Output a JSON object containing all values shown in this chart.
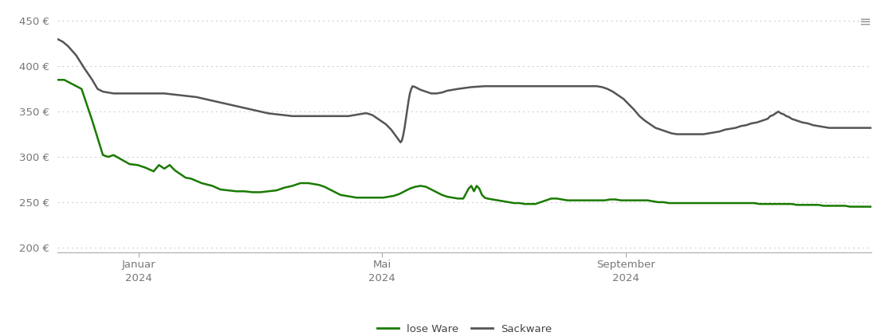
{
  "green_color": "#1a7a00",
  "gray_color": "#555555",
  "background_color": "#ffffff",
  "grid_color": "#c8c8c8",
  "ylim": [
    195,
    462
  ],
  "yticks": [
    200,
    250,
    300,
    350,
    400,
    450
  ],
  "ytick_labels": [
    "200 €",
    "250 €",
    "300 €",
    "350 €",
    "400 €",
    "450 €"
  ],
  "line_width": 1.8,
  "legend_green": "lose Ware",
  "legend_gray": "Sackware",
  "x_tick_positions": [
    61,
    243,
    426
  ],
  "x_tick_labels": [
    "Januar\n2024",
    "Mai\n2024",
    "September\n2024"
  ],
  "total_days": 610,
  "green_data": [
    [
      0,
      385
    ],
    [
      5,
      385
    ],
    [
      18,
      375
    ],
    [
      26,
      340
    ],
    [
      34,
      302
    ],
    [
      38,
      300
    ],
    [
      42,
      302
    ],
    [
      48,
      297
    ],
    [
      54,
      292
    ],
    [
      60,
      291
    ],
    [
      66,
      288
    ],
    [
      72,
      284
    ],
    [
      76,
      291
    ],
    [
      80,
      287
    ],
    [
      84,
      291
    ],
    [
      88,
      285
    ],
    [
      92,
      281
    ],
    [
      96,
      277
    ],
    [
      100,
      276
    ],
    [
      108,
      271
    ],
    [
      116,
      268
    ],
    [
      122,
      264
    ],
    [
      128,
      263
    ],
    [
      134,
      262
    ],
    [
      140,
      262
    ],
    [
      146,
      261
    ],
    [
      152,
      261
    ],
    [
      158,
      262
    ],
    [
      164,
      263
    ],
    [
      170,
      266
    ],
    [
      176,
      268
    ],
    [
      182,
      271
    ],
    [
      188,
      271
    ],
    [
      192,
      270
    ],
    [
      196,
      269
    ],
    [
      200,
      267
    ],
    [
      204,
      264
    ],
    [
      208,
      261
    ],
    [
      212,
      258
    ],
    [
      216,
      257
    ],
    [
      220,
      256
    ],
    [
      224,
      255
    ],
    [
      228,
      255
    ],
    [
      232,
      255
    ],
    [
      236,
      255
    ],
    [
      240,
      255
    ],
    [
      244,
      255
    ],
    [
      248,
      256
    ],
    [
      252,
      257
    ],
    [
      256,
      259
    ],
    [
      260,
      262
    ],
    [
      264,
      265
    ],
    [
      268,
      267
    ],
    [
      272,
      268
    ],
    [
      276,
      267
    ],
    [
      280,
      264
    ],
    [
      284,
      261
    ],
    [
      288,
      258
    ],
    [
      292,
      256
    ],
    [
      296,
      255
    ],
    [
      300,
      254
    ],
    [
      304,
      254
    ],
    [
      308,
      265
    ],
    [
      310,
      268
    ],
    [
      312,
      262
    ],
    [
      314,
      268
    ],
    [
      316,
      265
    ],
    [
      318,
      258
    ],
    [
      320,
      255
    ],
    [
      322,
      254
    ],
    [
      326,
      253
    ],
    [
      330,
      252
    ],
    [
      334,
      251
    ],
    [
      338,
      250
    ],
    [
      342,
      249
    ],
    [
      346,
      249
    ],
    [
      350,
      248
    ],
    [
      354,
      248
    ],
    [
      358,
      248
    ],
    [
      362,
      250
    ],
    [
      366,
      252
    ],
    [
      370,
      254
    ],
    [
      374,
      254
    ],
    [
      378,
      253
    ],
    [
      382,
      252
    ],
    [
      386,
      252
    ],
    [
      390,
      252
    ],
    [
      394,
      252
    ],
    [
      398,
      252
    ],
    [
      402,
      252
    ],
    [
      406,
      252
    ],
    [
      410,
      252
    ],
    [
      414,
      253
    ],
    [
      418,
      253
    ],
    [
      422,
      252
    ],
    [
      426,
      252
    ],
    [
      430,
      252
    ],
    [
      434,
      252
    ],
    [
      438,
      252
    ],
    [
      442,
      252
    ],
    [
      446,
      251
    ],
    [
      450,
      250
    ],
    [
      454,
      250
    ],
    [
      458,
      249
    ],
    [
      462,
      249
    ],
    [
      466,
      249
    ],
    [
      470,
      249
    ],
    [
      474,
      249
    ],
    [
      478,
      249
    ],
    [
      482,
      249
    ],
    [
      486,
      249
    ],
    [
      490,
      249
    ],
    [
      494,
      249
    ],
    [
      498,
      249
    ],
    [
      502,
      249
    ],
    [
      506,
      249
    ],
    [
      510,
      249
    ],
    [
      514,
      249
    ],
    [
      518,
      249
    ],
    [
      522,
      249
    ],
    [
      526,
      248
    ],
    [
      530,
      248
    ],
    [
      534,
      248
    ],
    [
      538,
      248
    ],
    [
      542,
      248
    ],
    [
      546,
      248
    ],
    [
      550,
      248
    ],
    [
      554,
      247
    ],
    [
      558,
      247
    ],
    [
      562,
      247
    ],
    [
      566,
      247
    ],
    [
      570,
      247
    ],
    [
      574,
      246
    ],
    [
      578,
      246
    ],
    [
      582,
      246
    ],
    [
      586,
      246
    ],
    [
      590,
      246
    ],
    [
      594,
      245
    ],
    [
      598,
      245
    ],
    [
      602,
      245
    ],
    [
      606,
      245
    ],
    [
      610,
      245
    ]
  ],
  "gray_data": [
    [
      0,
      430
    ],
    [
      4,
      427
    ],
    [
      8,
      422
    ],
    [
      14,
      412
    ],
    [
      20,
      398
    ],
    [
      26,
      385
    ],
    [
      30,
      375
    ],
    [
      34,
      372
    ],
    [
      38,
      371
    ],
    [
      42,
      370
    ],
    [
      46,
      370
    ],
    [
      50,
      370
    ],
    [
      56,
      370
    ],
    [
      62,
      370
    ],
    [
      68,
      370
    ],
    [
      74,
      370
    ],
    [
      80,
      370
    ],
    [
      86,
      369
    ],
    [
      92,
      368
    ],
    [
      98,
      367
    ],
    [
      104,
      366
    ],
    [
      110,
      364
    ],
    [
      116,
      362
    ],
    [
      122,
      360
    ],
    [
      128,
      358
    ],
    [
      134,
      356
    ],
    [
      140,
      354
    ],
    [
      146,
      352
    ],
    [
      152,
      350
    ],
    [
      158,
      348
    ],
    [
      164,
      347
    ],
    [
      170,
      346
    ],
    [
      176,
      345
    ],
    [
      182,
      345
    ],
    [
      188,
      345
    ],
    [
      192,
      345
    ],
    [
      196,
      345
    ],
    [
      200,
      345
    ],
    [
      204,
      345
    ],
    [
      208,
      345
    ],
    [
      212,
      345
    ],
    [
      216,
      345
    ],
    [
      218,
      345
    ],
    [
      222,
      346
    ],
    [
      226,
      347
    ],
    [
      230,
      348
    ],
    [
      232,
      348
    ],
    [
      234,
      347
    ],
    [
      236,
      346
    ],
    [
      238,
      344
    ],
    [
      240,
      342
    ],
    [
      242,
      340
    ],
    [
      244,
      338
    ],
    [
      246,
      336
    ],
    [
      248,
      333
    ],
    [
      250,
      330
    ],
    [
      252,
      326
    ],
    [
      254,
      322
    ],
    [
      256,
      318
    ],
    [
      257,
      316
    ],
    [
      258,
      318
    ],
    [
      259,
      324
    ],
    [
      260,
      332
    ],
    [
      261,
      342
    ],
    [
      262,
      352
    ],
    [
      263,
      362
    ],
    [
      264,
      370
    ],
    [
      265,
      375
    ],
    [
      266,
      378
    ],
    [
      268,
      377
    ],
    [
      272,
      374
    ],
    [
      276,
      372
    ],
    [
      280,
      370
    ],
    [
      284,
      370
    ],
    [
      288,
      371
    ],
    [
      292,
      373
    ],
    [
      296,
      374
    ],
    [
      300,
      375
    ],
    [
      310,
      377
    ],
    [
      320,
      378
    ],
    [
      330,
      378
    ],
    [
      340,
      378
    ],
    [
      350,
      378
    ],
    [
      360,
      378
    ],
    [
      370,
      378
    ],
    [
      380,
      378
    ],
    [
      390,
      378
    ],
    [
      400,
      378
    ],
    [
      404,
      378
    ],
    [
      408,
      377
    ],
    [
      412,
      375
    ],
    [
      416,
      372
    ],
    [
      420,
      368
    ],
    [
      424,
      364
    ],
    [
      428,
      358
    ],
    [
      432,
      352
    ],
    [
      436,
      345
    ],
    [
      440,
      340
    ],
    [
      444,
      336
    ],
    [
      448,
      332
    ],
    [
      452,
      330
    ],
    [
      456,
      328
    ],
    [
      460,
      326
    ],
    [
      464,
      325
    ],
    [
      468,
      325
    ],
    [
      472,
      325
    ],
    [
      476,
      325
    ],
    [
      480,
      325
    ],
    [
      484,
      325
    ],
    [
      488,
      326
    ],
    [
      492,
      327
    ],
    [
      496,
      328
    ],
    [
      500,
      330
    ],
    [
      504,
      331
    ],
    [
      508,
      332
    ],
    [
      512,
      334
    ],
    [
      516,
      335
    ],
    [
      520,
      337
    ],
    [
      524,
      338
    ],
    [
      528,
      340
    ],
    [
      532,
      342
    ],
    [
      534,
      345
    ],
    [
      536,
      346
    ],
    [
      538,
      348
    ],
    [
      540,
      350
    ],
    [
      542,
      348
    ],
    [
      544,
      347
    ],
    [
      546,
      345
    ],
    [
      548,
      344
    ],
    [
      550,
      342
    ],
    [
      554,
      340
    ],
    [
      558,
      338
    ],
    [
      562,
      337
    ],
    [
      566,
      335
    ],
    [
      570,
      334
    ],
    [
      574,
      333
    ],
    [
      578,
      332
    ],
    [
      582,
      332
    ],
    [
      586,
      332
    ],
    [
      590,
      332
    ],
    [
      594,
      332
    ],
    [
      598,
      332
    ],
    [
      602,
      332
    ],
    [
      606,
      332
    ],
    [
      610,
      332
    ]
  ]
}
